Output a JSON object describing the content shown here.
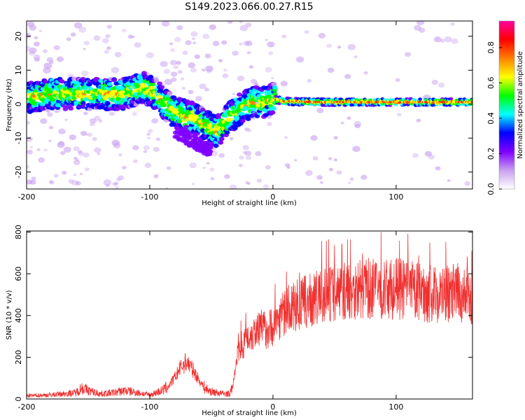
{
  "figure": {
    "title": "S149.2023.066.00.27.R15"
  },
  "chart_data": [
    {
      "type": "heatmap",
      "name": "spectrogram",
      "xlabel": "Height of straight line (km)",
      "ylabel": "Frequency (Hz)",
      "xlim": [
        -200,
        162
      ],
      "ylim": [
        -25,
        24.5
      ],
      "xticks": [
        -200,
        -100,
        0,
        100
      ],
      "xtick_labels": [
        "-200",
        "-100",
        "0",
        "100"
      ],
      "yticks": [
        -20,
        -10,
        0,
        10,
        20
      ],
      "ytick_labels": [
        "-20",
        "-10",
        "0",
        "10",
        "20"
      ],
      "ridge": {
        "x": [
          -200,
          -180,
          -160,
          -140,
          -120,
          -105,
          -95,
          -85,
          -75,
          -65,
          -55,
          -45,
          -35,
          -25,
          -15,
          -10,
          -5,
          0,
          10,
          40,
          100,
          162
        ],
        "y": [
          2,
          3,
          3,
          3,
          3,
          5,
          3,
          -1,
          -3,
          -4,
          -6,
          -8,
          -4,
          -1,
          1,
          0,
          1,
          1.5,
          0.8,
          0.6,
          0.6,
          0.6
        ]
      },
      "colorbar": {
        "label": "Normalized spectral amplitude",
        "range": [
          0,
          0.95
        ],
        "ticks": [
          0.0,
          0.2,
          0.4,
          0.6,
          0.8
        ],
        "tick_labels": [
          "0.0",
          "0.2",
          "0.4",
          "0.6",
          "0.8"
        ],
        "colors": [
          "#ffffff",
          "#c8a0f0",
          "#8000ff",
          "#0000ff",
          "#00ffff",
          "#00ff00",
          "#ffff00",
          "#ff8000",
          "#ff0000",
          "#ff00a0"
        ]
      }
    },
    {
      "type": "line",
      "name": "snr",
      "xlabel": "Height of straight line (km)",
      "ylabel": "SNR (10 * v/v)",
      "xlim": [
        -200,
        162
      ],
      "ylim": [
        0,
        805
      ],
      "xticks": [
        -200,
        -100,
        0,
        100
      ],
      "xtick_labels": [
        "-200",
        "-100",
        "0",
        "100"
      ],
      "yticks": [
        0,
        200,
        400,
        600,
        800
      ],
      "ytick_labels": [
        "0",
        "200",
        "400",
        "600",
        "800"
      ],
      "line_color": "#f03030",
      "series": [
        {
          "x": [
            -200,
            -180,
            -160,
            -155,
            -150,
            -140,
            -130,
            -120,
            -110,
            -100,
            -90,
            -85,
            -80,
            -75,
            -70,
            -65,
            -60,
            -55,
            -50,
            -45,
            -40,
            -35,
            -32,
            -30,
            -28,
            -25,
            -20,
            -15,
            -12,
            -10,
            -5,
            0,
            5,
            10,
            20,
            30,
            40,
            50,
            60,
            70,
            80,
            90,
            100,
            110,
            120,
            130,
            140,
            150,
            160
          ],
          "y": [
            15,
            20,
            30,
            55,
            40,
            25,
            30,
            40,
            30,
            20,
            40,
            60,
            100,
            150,
            180,
            140,
            90,
            50,
            35,
            30,
            25,
            25,
            80,
            180,
            250,
            260,
            300,
            320,
            350,
            340,
            330,
            350,
            390,
            420,
            450,
            470,
            490,
            510,
            520,
            530,
            530,
            520,
            530,
            520,
            510,
            500,
            500,
            510,
            480
          ]
        }
      ]
    }
  ]
}
